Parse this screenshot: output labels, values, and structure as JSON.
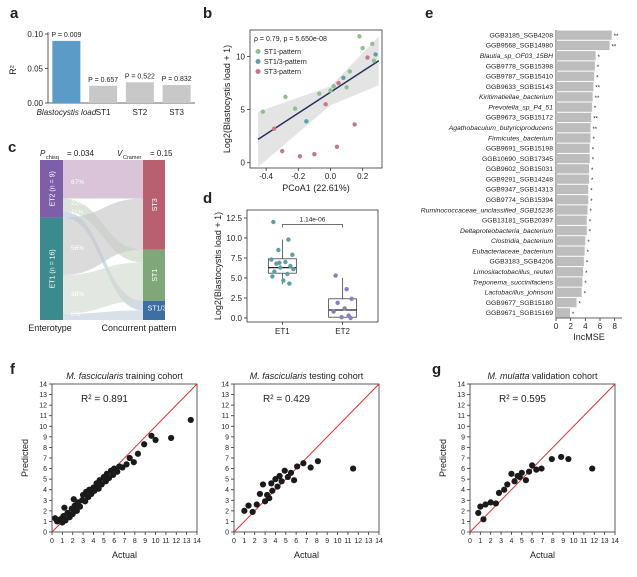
{
  "panel_labels": {
    "a": "a",
    "b": "b",
    "c": "c",
    "d": "d",
    "e": "e",
    "f": "f",
    "g": "g"
  },
  "chart_data": [
    {
      "id": "a",
      "type": "bar",
      "ylabel": "R²",
      "ylim": [
        0,
        0.1
      ],
      "yticks": [
        "0.00",
        "0.05",
        "0.10"
      ],
      "categories": [
        "Blastocystis load",
        "ST1",
        "ST2",
        "ST3"
      ],
      "values": [
        0.09,
        0.025,
        0.03,
        0.026
      ],
      "bar_labels": [
        "P = 0.009",
        "P = 0.657",
        "P = 0.522",
        "P = 0.832"
      ],
      "colors": [
        "#5b9bc8",
        "#c8c8c8",
        "#c8c8c8",
        "#c8c8c8"
      ]
    },
    {
      "id": "b",
      "type": "scatter",
      "title": "ρ = 0.79, p = 5.650e-08",
      "xlabel": "PCoA1 (22.61%)",
      "ylabel": "Log2(Blastocystis load + 1)",
      "xlim": [
        -0.5,
        0.32
      ],
      "ylim": [
        -0.5,
        12.5
      ],
      "xticks": [
        "-0.4",
        "-0.2",
        "0.0",
        "0.2"
      ],
      "yticks": [
        "0",
        "5",
        "10"
      ],
      "legend": [
        {
          "name": "ST1-pattern",
          "color": "#8fbf8f"
        },
        {
          "name": "ST1/3-pattern",
          "color": "#5f9ea6"
        },
        {
          "name": "ST3-pattern",
          "color": "#c7778a"
        }
      ],
      "fit": {
        "x0": -0.45,
        "y0": 2.2,
        "x1": 0.3,
        "y1": 9.6
      },
      "points": [
        {
          "x": -0.42,
          "y": 4.8,
          "g": 0
        },
        {
          "x": -0.35,
          "y": 3.2,
          "g": 2
        },
        {
          "x": -0.3,
          "y": 1.1,
          "g": 2
        },
        {
          "x": -0.28,
          "y": 6.2,
          "g": 0
        },
        {
          "x": -0.22,
          "y": 5.1,
          "g": 0
        },
        {
          "x": -0.19,
          "y": 0.6,
          "g": 2
        },
        {
          "x": -0.15,
          "y": 3.9,
          "g": 1
        },
        {
          "x": -0.1,
          "y": 0.8,
          "g": 2
        },
        {
          "x": -0.07,
          "y": 6.5,
          "g": 0
        },
        {
          "x": -0.03,
          "y": 5.5,
          "g": 2
        },
        {
          "x": 0.0,
          "y": 6.8,
          "g": 0
        },
        {
          "x": 0.02,
          "y": 7.2,
          "g": 0
        },
        {
          "x": 0.04,
          "y": 1.5,
          "g": 2
        },
        {
          "x": 0.05,
          "y": 7.5,
          "g": 2
        },
        {
          "x": 0.08,
          "y": 8.0,
          "g": 1
        },
        {
          "x": 0.1,
          "y": 7.1,
          "g": 0
        },
        {
          "x": 0.12,
          "y": 8.6,
          "g": 0
        },
        {
          "x": 0.15,
          "y": 3.6,
          "g": 2
        },
        {
          "x": 0.18,
          "y": 11.9,
          "g": 0
        },
        {
          "x": 0.2,
          "y": 10.8,
          "g": 0
        },
        {
          "x": 0.23,
          "y": 9.9,
          "g": 2
        },
        {
          "x": 0.26,
          "y": 11.2,
          "g": 0
        },
        {
          "x": 0.27,
          "y": 9.6,
          "g": 0
        },
        {
          "x": 0.28,
          "y": 10.2,
          "g": 1
        }
      ]
    },
    {
      "id": "c",
      "type": "sankey",
      "header_left": "P",
      "header_left_sub": "chisq",
      "header_left_value": "= 0.034",
      "header_right": "V",
      "header_right_sub": "Cramer",
      "header_right_value": "= 0.15",
      "left_nodes": [
        {
          "name": "ET2 (n = 9)",
          "color": "#7d5ea8",
          "share": 0.36
        },
        {
          "name": "ET1 (n = 16)",
          "color": "#3a8a8e",
          "share": 0.64
        }
      ],
      "right_nodes": [
        {
          "name": "ST3",
          "color": "#b8606f",
          "share": 0.56
        },
        {
          "name": "ST1",
          "color": "#7fa77a",
          "share": 0.32
        },
        {
          "name": "ST1/3",
          "color": "#3d6fa3",
          "share": 0.12
        }
      ],
      "flow_percents": [
        "67%",
        "22%",
        "11%",
        "56%",
        "38%",
        "6%"
      ],
      "xlabels": [
        "Enterotype",
        "Concurrent pattern"
      ]
    },
    {
      "id": "d",
      "type": "box",
      "ylabel": "Log2(Blastocystis load + 1)",
      "categories": [
        "ET1",
        "ET2"
      ],
      "ylim": [
        -0.5,
        13.5
      ],
      "yticks": [
        "0.0",
        "2.5",
        "5.0",
        "7.5",
        "10.0",
        "12.5"
      ],
      "pvalue": "1.14e-06",
      "boxes": [
        {
          "q1": 5.6,
          "median": 6.3,
          "q3": 7.4,
          "min": 4.2,
          "max": 9.8
        },
        {
          "q1": 0.1,
          "median": 1.0,
          "q3": 2.4,
          "min": 0.0,
          "max": 5.0
        }
      ],
      "points": [
        {
          "c": 0,
          "y": 12.0
        },
        {
          "c": 0,
          "y": 9.8
        },
        {
          "c": 0,
          "y": 8.5
        },
        {
          "c": 0,
          "y": 7.9
        },
        {
          "c": 0,
          "y": 7.3
        },
        {
          "c": 0,
          "y": 7.0
        },
        {
          "c": 0,
          "y": 6.8
        },
        {
          "c": 0,
          "y": 6.5
        },
        {
          "c": 0,
          "y": 6.3
        },
        {
          "c": 0,
          "y": 6.1
        },
        {
          "c": 0,
          "y": 5.8
        },
        {
          "c": 0,
          "y": 5.5
        },
        {
          "c": 0,
          "y": 5.2
        },
        {
          "c": 0,
          "y": 4.7
        },
        {
          "c": 0,
          "y": 4.3
        },
        {
          "c": 0,
          "y": 6.9
        },
        {
          "c": 1,
          "y": 5.3
        },
        {
          "c": 1,
          "y": 3.6
        },
        {
          "c": 1,
          "y": 2.4
        },
        {
          "c": 1,
          "y": 1.9
        },
        {
          "c": 1,
          "y": 1.2
        },
        {
          "c": 1,
          "y": 0.8
        },
        {
          "c": 1,
          "y": 0.3
        },
        {
          "c": 1,
          "y": 0.1
        },
        {
          "c": 1,
          "y": 0.0
        }
      ],
      "point_colors": [
        "#5f9ea6",
        "#8c7fc0"
      ]
    },
    {
      "id": "e",
      "type": "bar",
      "orientation": "horizontal",
      "xlabel": "IncMSE",
      "xlim": [
        0,
        9
      ],
      "xticks": [
        "0",
        "2",
        "4",
        "6",
        "8"
      ],
      "categories": [
        "GGB3185_SGB4208",
        "GGB9568_SGB14980",
        "Blautia_sp_OF03_15BH",
        "GGB9778_SGB15398",
        "GGB9787_SGB15410",
        "GGB9633_SGB15143",
        "Kiritimatiellae_bacterium",
        "Prevotella_sp_P4_51",
        "GGB9673_SGB15172",
        "Agathobaculum_butyriciproducens",
        "Firmicutes_bacterium",
        "GGB9691_SGB15198",
        "GGB10690_SGB17345",
        "GGB9602_SGB15031",
        "GGB9291_SGB14248",
        "GGB9347_SGB14313",
        "GGB9774_SGB15394",
        "Ruminococcaceae_unclassified_SGB15236",
        "GGB13181_SGB20397",
        "Deltaproteobacteria_bacterium",
        "Clostridia_bacterium",
        "Eubacteriaceae_bacterium",
        "GGB3183_SGB4206",
        "Limosilactobacillus_reuteri",
        "Treponema_succinifaciens",
        "Lactobacillus_johnsoni",
        "GGB9677_SGB15180",
        "GGB9671_SGB15169"
      ],
      "italic": [
        false,
        false,
        true,
        false,
        false,
        false,
        true,
        true,
        false,
        true,
        true,
        false,
        false,
        false,
        false,
        false,
        false,
        true,
        false,
        true,
        true,
        true,
        false,
        true,
        true,
        true,
        false,
        false
      ],
      "values": [
        7.6,
        7.3,
        5.4,
        5.3,
        5.2,
        5.1,
        5.0,
        4.9,
        4.8,
        4.7,
        4.7,
        4.6,
        4.6,
        4.5,
        4.5,
        4.4,
        4.4,
        4.3,
        4.2,
        4.2,
        4.0,
        3.9,
        3.8,
        3.7,
        3.6,
        3.5,
        2.8,
        1.9
      ],
      "stars": [
        "**",
        "**",
        "*",
        "*",
        "*",
        "**",
        "**",
        "*",
        "**",
        "**",
        "*",
        "*",
        "*",
        "*",
        "*",
        "*",
        "*",
        "*",
        "*",
        "*",
        "*",
        "*",
        "*",
        "*",
        "*",
        "*",
        "*",
        "*"
      ]
    },
    {
      "id": "f1",
      "type": "scatter",
      "title": "M. fascicularis training cohort",
      "title_italic": "M. fascicularis",
      "title_rest": " training cohort",
      "r2": "R² = 0.891",
      "xlabel": "Actual",
      "ylabel": "Predicted",
      "xlim": [
        0,
        14
      ],
      "ylim": [
        0,
        14
      ],
      "ticks": [
        "0",
        "1",
        "2",
        "3",
        "4",
        "5",
        "6",
        "7",
        "8",
        "9",
        "10",
        "11",
        "12",
        "13",
        "14"
      ],
      "points": [
        [
          0.5,
          1.0
        ],
        [
          0.8,
          1.2
        ],
        [
          1.0,
          0.9
        ],
        [
          1.1,
          1.5
        ],
        [
          1.3,
          1.1
        ],
        [
          1.5,
          1.8
        ],
        [
          1.7,
          1.4
        ],
        [
          1.9,
          2.2
        ],
        [
          2.0,
          1.7
        ],
        [
          2.2,
          2.5
        ],
        [
          2.4,
          2.0
        ],
        [
          2.5,
          2.8
        ],
        [
          2.7,
          2.4
        ],
        [
          2.9,
          3.0
        ],
        [
          3.0,
          3.5
        ],
        [
          3.2,
          2.9
        ],
        [
          3.3,
          3.8
        ],
        [
          3.5,
          3.3
        ],
        [
          3.6,
          4.0
        ],
        [
          3.8,
          3.6
        ],
        [
          4.0,
          4.2
        ],
        [
          4.1,
          3.9
        ],
        [
          4.3,
          4.6
        ],
        [
          4.5,
          4.1
        ],
        [
          4.6,
          4.9
        ],
        [
          4.8,
          4.5
        ],
        [
          5.0,
          5.2
        ],
        [
          5.2,
          4.8
        ],
        [
          5.3,
          5.5
        ],
        [
          5.5,
          5.1
        ],
        [
          5.7,
          5.8
        ],
        [
          5.9,
          5.4
        ],
        [
          6.0,
          6.0
        ],
        [
          6.3,
          5.7
        ],
        [
          6.5,
          6.2
        ],
        [
          6.8,
          6.1
        ],
        [
          7.2,
          6.4
        ],
        [
          7.5,
          7.0
        ],
        [
          7.9,
          6.6
        ],
        [
          8.3,
          7.4
        ],
        [
          8.9,
          8.3
        ],
        [
          9.6,
          9.1
        ],
        [
          10.0,
          8.7
        ],
        [
          11.5,
          8.9
        ],
        [
          13.4,
          10.6
        ],
        [
          1.2,
          2.3
        ],
        [
          2.1,
          3.1
        ],
        [
          0.3,
          1.3
        ]
      ]
    },
    {
      "id": "f2",
      "type": "scatter",
      "title": "M. fascicularis testing cohort",
      "title_italic": "M. fascicularis",
      "title_rest": " testing cohort",
      "r2": "R² = 0.429",
      "xlabel": "Actual",
      "xlim": [
        0,
        14
      ],
      "ylim": [
        0,
        14
      ],
      "ticks": [
        "0",
        "1",
        "2",
        "3",
        "4",
        "5",
        "6",
        "7",
        "8",
        "9",
        "10",
        "11",
        "12",
        "13",
        "14"
      ],
      "points": [
        [
          1.0,
          2.0
        ],
        [
          1.4,
          2.5
        ],
        [
          1.8,
          1.9
        ],
        [
          2.5,
          3.6
        ],
        [
          2.8,
          4.5
        ],
        [
          3.0,
          2.9
        ],
        [
          3.2,
          3.5
        ],
        [
          3.4,
          3.2
        ],
        [
          3.6,
          4.6
        ],
        [
          3.7,
          3.9
        ],
        [
          4.0,
          5.0
        ],
        [
          4.2,
          4.3
        ],
        [
          4.4,
          5.3
        ],
        [
          4.6,
          4.8
        ],
        [
          4.9,
          5.8
        ],
        [
          5.2,
          5.2
        ],
        [
          5.5,
          5.6
        ],
        [
          5.8,
          4.9
        ],
        [
          6.1,
          6.2
        ],
        [
          6.7,
          6.5
        ],
        [
          7.4,
          6.1
        ],
        [
          8.1,
          6.7
        ],
        [
          11.5,
          6.0
        ],
        [
          2.2,
          2.6
        ]
      ]
    },
    {
      "id": "g",
      "type": "scatter",
      "title": "M. mulatta validation cohort",
      "title_italic": "M. mulatta",
      "title_rest": " validation cohort",
      "r2": "R² = 0.595",
      "xlabel": "Actual",
      "ylabel": "Predicted",
      "xlim": [
        0,
        14
      ],
      "ylim": [
        0,
        14
      ],
      "ticks": [
        "0",
        "1",
        "2",
        "3",
        "4",
        "5",
        "6",
        "7",
        "8",
        "9",
        "10",
        "11",
        "12",
        "13",
        "14"
      ],
      "points": [
        [
          0.8,
          1.8
        ],
        [
          1.0,
          2.4
        ],
        [
          1.3,
          1.2
        ],
        [
          1.5,
          2.6
        ],
        [
          2.0,
          2.8
        ],
        [
          2.5,
          2.7
        ],
        [
          2.8,
          3.7
        ],
        [
          3.3,
          4.0
        ],
        [
          3.6,
          4.5
        ],
        [
          4.0,
          5.5
        ],
        [
          4.3,
          4.8
        ],
        [
          4.8,
          5.2
        ],
        [
          5.0,
          5.6
        ],
        [
          5.4,
          4.9
        ],
        [
          5.7,
          5.7
        ],
        [
          6.0,
          6.3
        ],
        [
          6.4,
          5.9
        ],
        [
          6.9,
          6.0
        ],
        [
          7.9,
          6.9
        ],
        [
          8.8,
          7.1
        ],
        [
          9.5,
          6.9
        ],
        [
          11.8,
          6.0
        ],
        [
          4.6,
          5.3
        ]
      ]
    }
  ]
}
